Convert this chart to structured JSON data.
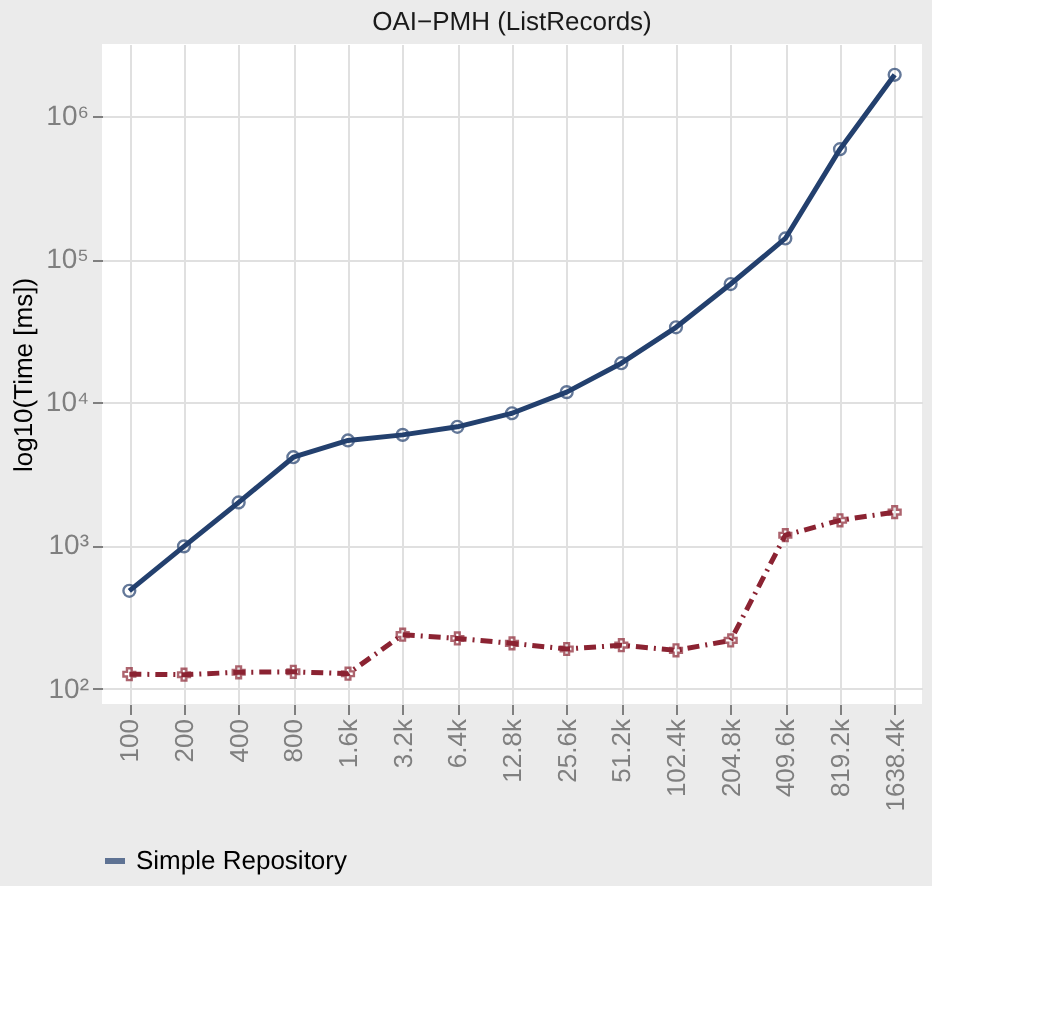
{
  "chart_data": {
    "type": "line",
    "title": "OAI−PMH (ListRecords)",
    "ylabel": "log10(Time [ms])",
    "categories": [
      "100",
      "200",
      "400",
      "800",
      "1.6k",
      "3.2k",
      "6.4k",
      "12.8k",
      "25.6k",
      "51.2k",
      "102.4k",
      "204.8k",
      "409.6k",
      "819.2k",
      "1638.4k"
    ],
    "series": [
      {
        "name": "Simple Repository",
        "color": "#23406e",
        "marker": "circle",
        "line_style": "solid",
        "values": [
          482,
          986,
          2000,
          4140,
          5420,
          5930,
          6750,
          8400,
          11800,
          18800,
          33500,
          67200,
          140000,
          589000,
          1950000
        ]
      },
      {
        "color": "#8b2332",
        "marker": "cross",
        "line_style": "dashdot",
        "values": [
          126,
          125,
          130,
          131,
          127,
          238,
          224,
          207,
          189,
          201,
          185,
          217,
          1180,
          1500,
          1710
        ]
      }
    ],
    "log": true,
    "ylim": [
      78,
      3200000
    ],
    "yticks": [
      {
        "value": 100,
        "label": "10²"
      },
      {
        "value": 1000,
        "label": "10³"
      },
      {
        "value": 10000,
        "label": "10⁴"
      },
      {
        "value": 100000,
        "label": "10⁵"
      },
      {
        "value": 1000000,
        "label": "10⁶"
      }
    ],
    "grid": true,
    "legend": "bottom"
  }
}
